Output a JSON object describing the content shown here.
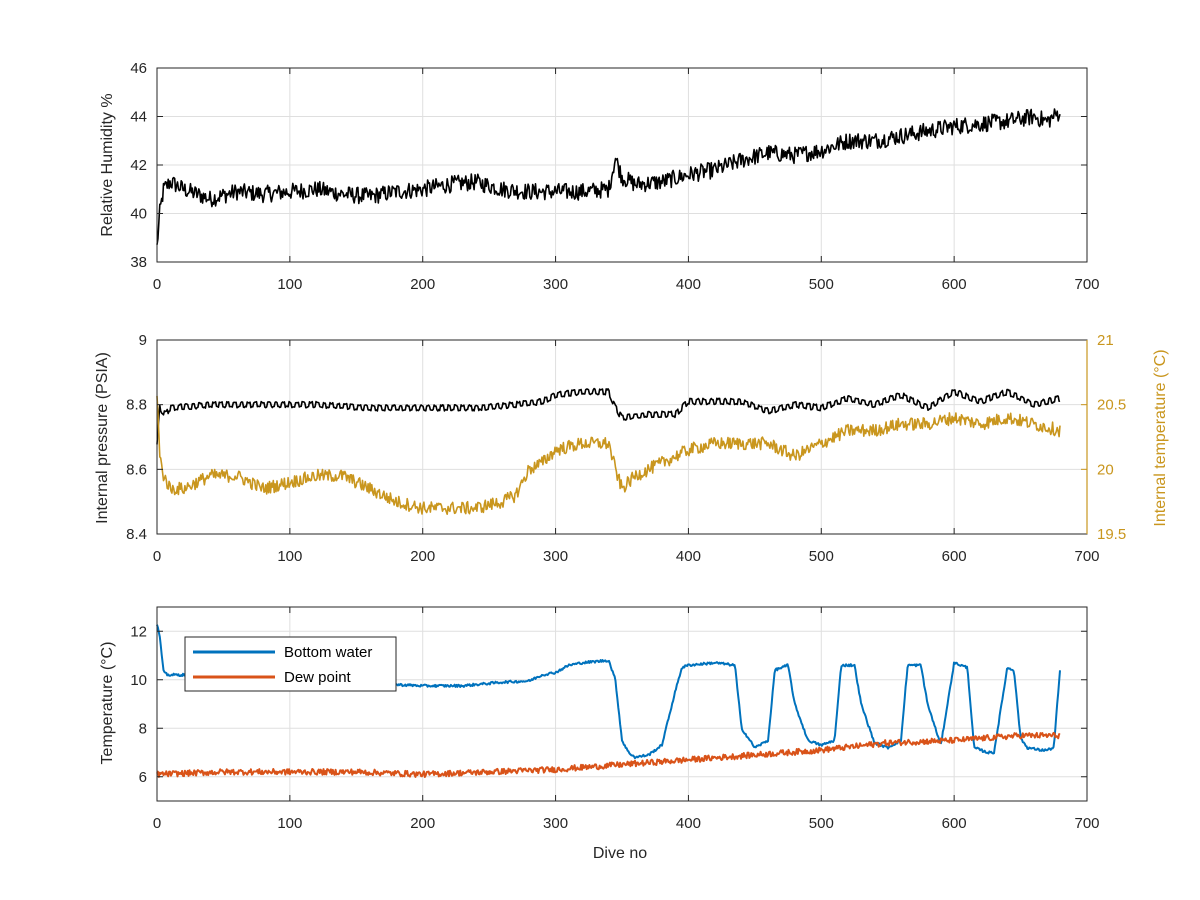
{
  "colors": {
    "black": "#000000",
    "blue": "#0072BD",
    "orange": "#D95319",
    "gold": "#C9961E",
    "axis": "#262626",
    "grid": "#DFDFDF"
  },
  "chart_data": [
    {
      "type": "line",
      "xlabel": "",
      "ylabel": "Relative Humidity %",
      "xlim": [
        0,
        700
      ],
      "ylim": [
        38,
        46
      ],
      "xticks": [
        "0",
        "100",
        "200",
        "300",
        "400",
        "500",
        "600",
        "700"
      ],
      "yticks": [
        "38",
        "40",
        "42",
        "44",
        "46"
      ],
      "grid": true,
      "series": [
        {
          "name": "",
          "color": "#000000",
          "x": [
            0,
            2,
            5,
            10,
            20,
            40,
            60,
            80,
            100,
            120,
            140,
            160,
            180,
            200,
            220,
            240,
            260,
            280,
            300,
            320,
            340,
            345,
            350,
            360,
            380,
            400,
            420,
            440,
            460,
            480,
            500,
            520,
            540,
            560,
            580,
            600,
            620,
            640,
            660,
            670,
            680
          ],
          "y": [
            38.6,
            40.0,
            41.0,
            41.3,
            41.0,
            40.6,
            40.9,
            40.8,
            40.9,
            41.0,
            40.8,
            40.7,
            40.9,
            41.0,
            41.2,
            41.3,
            41.0,
            40.9,
            40.9,
            40.9,
            41.0,
            42.3,
            41.5,
            41.2,
            41.3,
            41.6,
            41.8,
            42.2,
            42.5,
            42.4,
            42.6,
            43.0,
            43.0,
            43.2,
            43.4,
            43.6,
            43.7,
            43.8,
            44.0,
            43.8,
            44.2
          ]
        }
      ]
    },
    {
      "type": "line",
      "xlabel": "",
      "ylabel": "Internal pressure (PSIA)",
      "y2label": "Internal temperature (°C)",
      "xlim": [
        0,
        700
      ],
      "ylim": [
        8.4,
        9
      ],
      "y2lim": [
        19.5,
        21
      ],
      "xticks": [
        "0",
        "100",
        "200",
        "300",
        "400",
        "500",
        "600",
        "700"
      ],
      "yticks": [
        "8.4",
        "8.6",
        "8.8",
        "9"
      ],
      "y2ticks": [
        "19.5",
        "20",
        "20.5",
        "21"
      ],
      "grid": true,
      "series": [
        {
          "name": "",
          "axis": "left",
          "color": "#000000",
          "x": [
            0,
            2,
            6,
            10,
            40,
            80,
            120,
            160,
            200,
            240,
            270,
            290,
            300,
            320,
            340,
            345,
            350,
            370,
            390,
            400,
            420,
            440,
            460,
            480,
            500,
            520,
            540,
            560,
            580,
            600,
            620,
            640,
            660,
            680
          ],
          "y": [
            8.67,
            8.79,
            8.77,
            8.79,
            8.8,
            8.8,
            8.8,
            8.79,
            8.79,
            8.79,
            8.8,
            8.81,
            8.83,
            8.84,
            8.84,
            8.79,
            8.76,
            8.77,
            8.77,
            8.81,
            8.81,
            8.81,
            8.78,
            8.8,
            8.79,
            8.82,
            8.8,
            8.83,
            8.79,
            8.84,
            8.81,
            8.84,
            8.8,
            8.82
          ]
        },
        {
          "name": "",
          "axis": "right",
          "color": "#C9961E",
          "x": [
            0,
            2,
            5,
            10,
            20,
            40,
            60,
            80,
            100,
            120,
            140,
            160,
            170,
            180,
            200,
            220,
            240,
            260,
            270,
            280,
            290,
            300,
            320,
            340,
            345,
            350,
            360,
            380,
            400,
            420,
            440,
            460,
            480,
            500,
            520,
            540,
            560,
            580,
            600,
            620,
            640,
            660,
            680
          ],
          "y": [
            20.6,
            20.1,
            19.95,
            19.85,
            19.85,
            19.95,
            19.95,
            19.85,
            19.9,
            19.95,
            19.95,
            19.85,
            19.8,
            19.75,
            19.7,
            19.7,
            19.7,
            19.75,
            19.8,
            20.0,
            20.05,
            20.15,
            20.2,
            20.2,
            20.0,
            19.85,
            19.95,
            20.05,
            20.15,
            20.2,
            20.2,
            20.2,
            20.1,
            20.2,
            20.3,
            20.3,
            20.35,
            20.35,
            20.4,
            20.35,
            20.4,
            20.35,
            20.3
          ]
        }
      ]
    },
    {
      "type": "line",
      "xlabel": "Dive no",
      "ylabel": "Temperature (°C)",
      "xlim": [
        0,
        700
      ],
      "ylim": [
        5,
        13
      ],
      "xticks": [
        "0",
        "100",
        "200",
        "300",
        "400",
        "500",
        "600",
        "700"
      ],
      "yticks": [
        "6",
        "8",
        "10",
        "12"
      ],
      "grid": true,
      "legend": "top-left",
      "series": [
        {
          "name": "Bottom water",
          "color": "#0072BD",
          "x": [
            0,
            2,
            5,
            8,
            20,
            60,
            100,
            150,
            180,
            200,
            230,
            260,
            280,
            290,
            300,
            310,
            320,
            340,
            345,
            350,
            355,
            360,
            370,
            380,
            390,
            395,
            400,
            420,
            435,
            440,
            450,
            460,
            465,
            475,
            480,
            490,
            500,
            510,
            515,
            525,
            530,
            540,
            550,
            560,
            565,
            575,
            580,
            590,
            600,
            610,
            615,
            625,
            630,
            640,
            645,
            650,
            655,
            665,
            670,
            675,
            680
          ],
          "y": [
            12.3,
            11.8,
            10.3,
            10.2,
            10.2,
            10.2,
            10.1,
            10.0,
            9.8,
            9.75,
            9.75,
            9.9,
            9.95,
            10.2,
            10.3,
            10.6,
            10.7,
            10.8,
            10.0,
            7.5,
            7.0,
            6.8,
            6.9,
            7.3,
            9.5,
            10.5,
            10.6,
            10.7,
            10.6,
            8.0,
            7.2,
            7.5,
            10.4,
            10.6,
            9.0,
            7.5,
            7.3,
            7.5,
            10.6,
            10.6,
            9.0,
            7.4,
            7.2,
            7.5,
            10.6,
            10.6,
            9.0,
            7.3,
            10.7,
            10.5,
            7.2,
            7.0,
            7.0,
            10.5,
            10.4,
            7.6,
            7.2,
            7.1,
            7.1,
            7.2,
            10.6
          ]
        },
        {
          "name": "Dew point",
          "color": "#D95319",
          "x": [
            0,
            50,
            100,
            150,
            200,
            250,
            300,
            350,
            400,
            450,
            500,
            550,
            600,
            650,
            680
          ],
          "y": [
            6.1,
            6.2,
            6.2,
            6.2,
            6.1,
            6.2,
            6.3,
            6.5,
            6.7,
            6.9,
            7.1,
            7.4,
            7.5,
            7.7,
            7.7
          ]
        }
      ]
    }
  ]
}
